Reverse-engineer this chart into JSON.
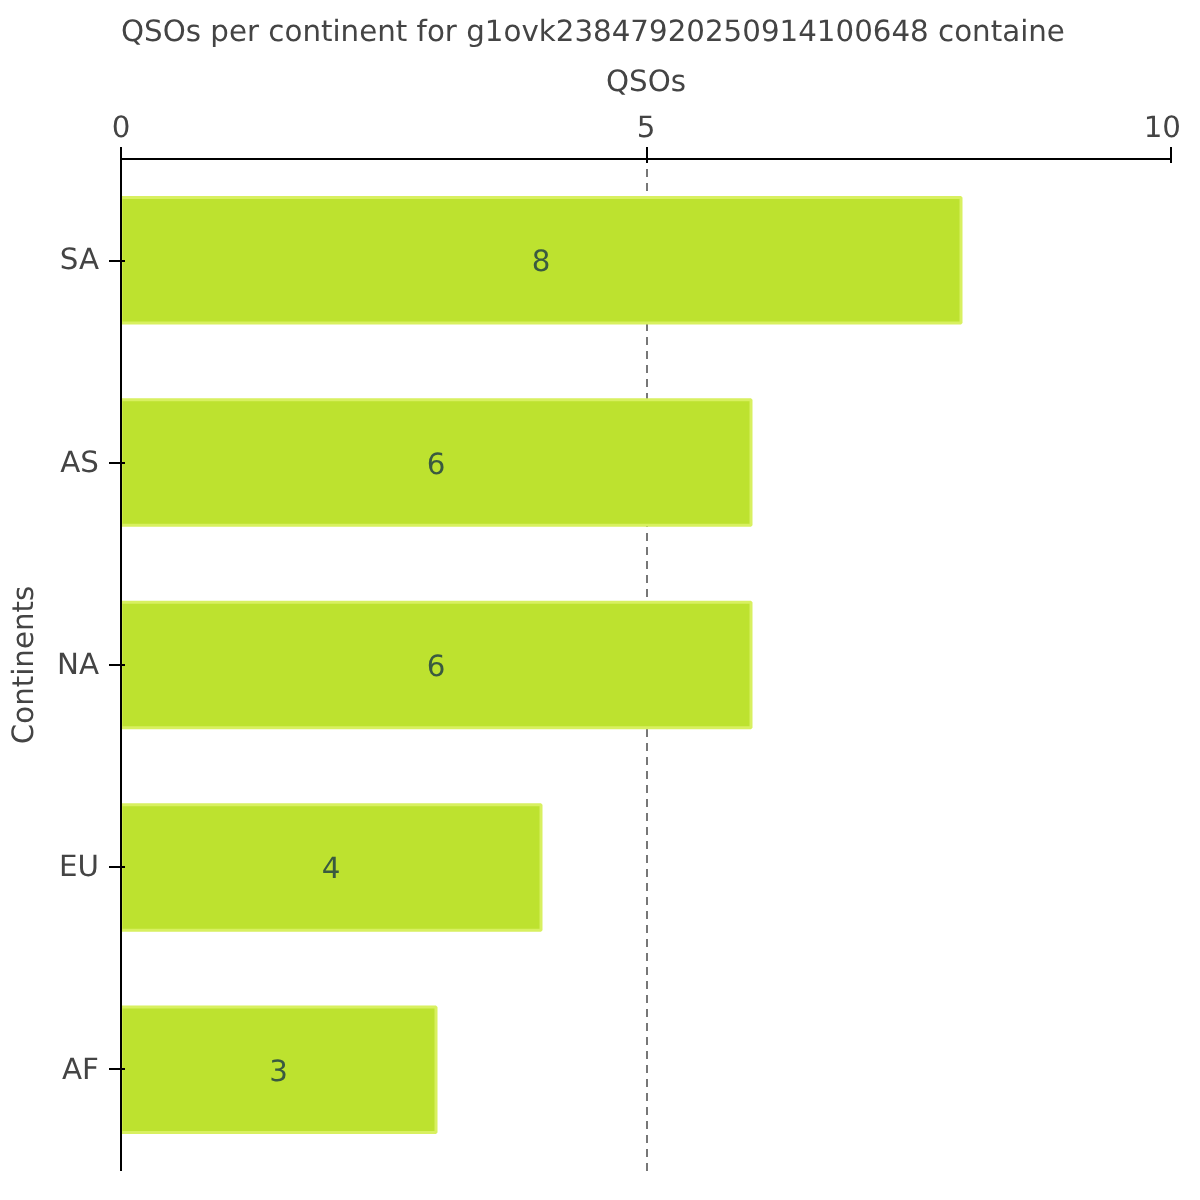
{
  "chart_data": {
    "type": "bar",
    "orientation": "horizontal",
    "title": "QSOs per continent for g1ovk23847920250914100648 containe",
    "xlabel": "QSOs",
    "ylabel": "Continents",
    "categories": [
      "SA",
      "AS",
      "NA",
      "EU",
      "AF"
    ],
    "values": [
      8,
      6,
      6,
      4,
      3
    ],
    "color": "#bde22f",
    "xlim": [
      0,
      10
    ],
    "xticks": [
      0,
      5,
      10
    ],
    "grid": "x",
    "data_labels": true
  }
}
